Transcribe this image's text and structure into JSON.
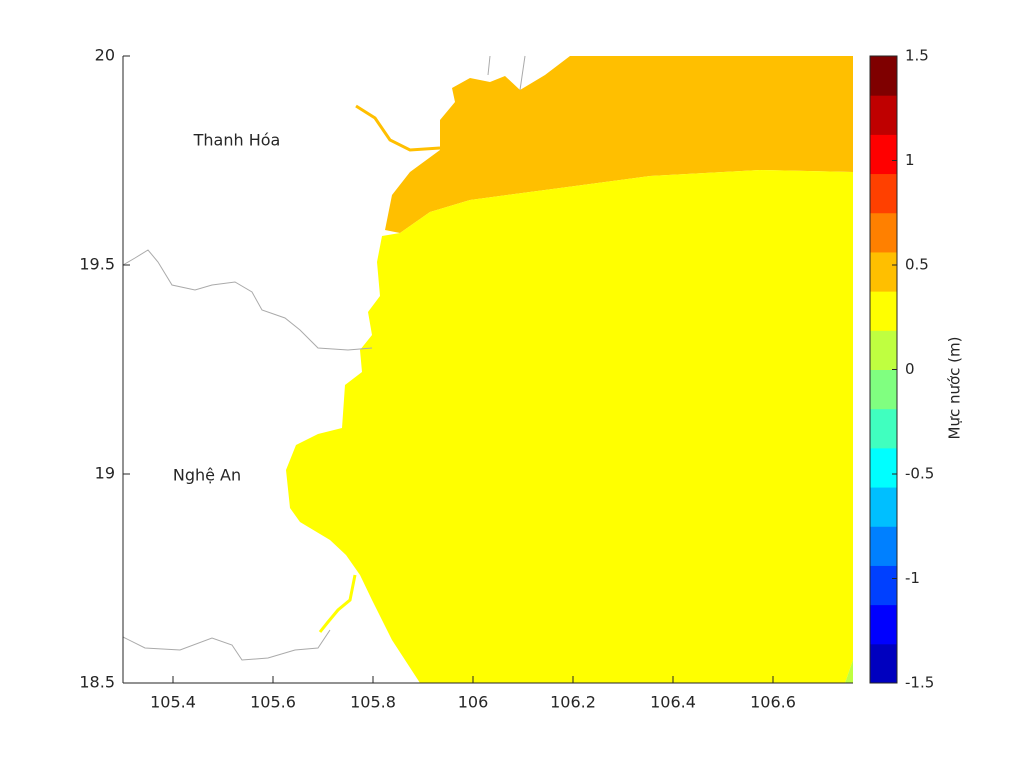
{
  "chart_data": {
    "type": "map",
    "xlim": [
      105.3,
      106.76
    ],
    "xticks": [
      105.4,
      105.6,
      105.8,
      106,
      106.2,
      106.4,
      106.6
    ],
    "ylim": [
      18.5,
      20
    ],
    "yticks": [
      18.5,
      19,
      19.5,
      20
    ],
    "annotations": [
      "Thanh Hóa",
      "Nghệ An"
    ],
    "colorbar": {
      "label": "Mực nước (m)",
      "lim": [
        -1.5,
        1.5
      ],
      "ticks": [
        -1.5,
        -1,
        -0.5,
        0,
        0.5,
        1,
        1.5
      ],
      "colors": [
        "#0000bf",
        "#0000ff",
        "#0040ff",
        "#0080ff",
        "#00bfff",
        "#00ffff",
        "#40ffbf",
        "#80ff80",
        "#bfff40",
        "#ffff00",
        "#ffbf00",
        "#ff8000",
        "#ff4000",
        "#ff0000",
        "#bf0000",
        "#7f0000"
      ]
    }
  }
}
